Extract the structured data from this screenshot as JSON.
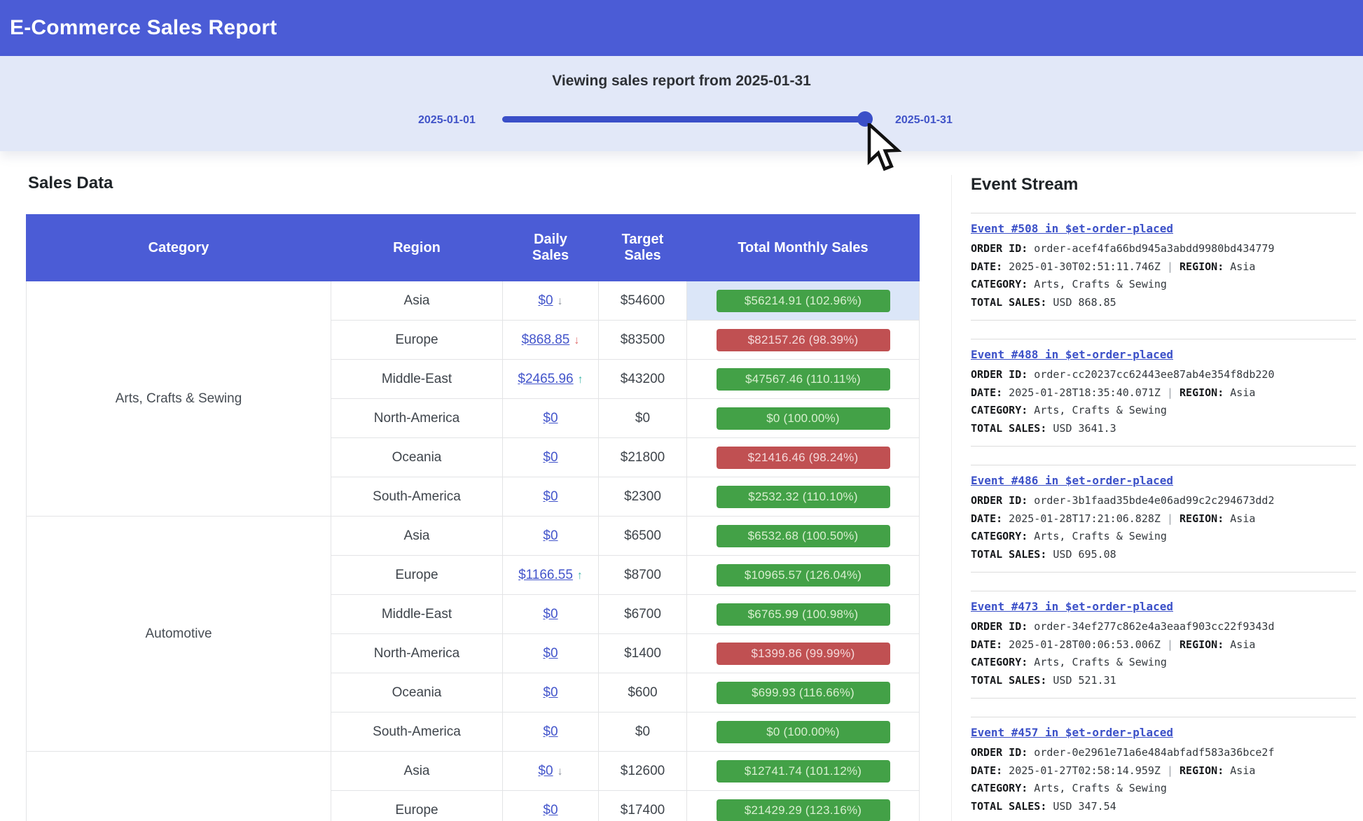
{
  "header": {
    "title": "E-Commerce Sales Report"
  },
  "slider": {
    "title": "Viewing sales report from 2025-01-31",
    "start_label": "2025-01-01",
    "end_label": "2025-01-31",
    "value_percent": 97
  },
  "sales": {
    "heading": "Sales Data",
    "columns": [
      "Category",
      "Region",
      "Daily Sales",
      "Target Sales",
      "Total Monthly Sales"
    ],
    "groups": [
      {
        "category": "Arts, Crafts & Sewing",
        "rows": [
          {
            "region": "Asia",
            "daily": "$0",
            "trend": "down-gray",
            "target": "$54600",
            "total": "$56214.91 (102.96%)",
            "status": "green",
            "highlight": true
          },
          {
            "region": "Europe",
            "daily": "$868.85",
            "trend": "down-red",
            "target": "$83500",
            "total": "$82157.26 (98.39%)",
            "status": "red",
            "highlight": false
          },
          {
            "region": "Middle-East",
            "daily": "$2465.96",
            "trend": "up-teal",
            "target": "$43200",
            "total": "$47567.46 (110.11%)",
            "status": "green",
            "highlight": false
          },
          {
            "region": "North-America",
            "daily": "$0",
            "trend": null,
            "target": "$0",
            "total": "$0 (100.00%)",
            "status": "green",
            "highlight": false
          },
          {
            "region": "Oceania",
            "daily": "$0",
            "trend": null,
            "target": "$21800",
            "total": "$21416.46 (98.24%)",
            "status": "red",
            "highlight": false
          },
          {
            "region": "South-America",
            "daily": "$0",
            "trend": null,
            "target": "$2300",
            "total": "$2532.32 (110.10%)",
            "status": "green",
            "highlight": false
          }
        ]
      },
      {
        "category": "Automotive",
        "rows": [
          {
            "region": "Asia",
            "daily": "$0",
            "trend": null,
            "target": "$6500",
            "total": "$6532.68 (100.50%)",
            "status": "green",
            "highlight": false
          },
          {
            "region": "Europe",
            "daily": "$1166.55",
            "trend": "up-teal",
            "target": "$8700",
            "total": "$10965.57 (126.04%)",
            "status": "green",
            "highlight": false
          },
          {
            "region": "Middle-East",
            "daily": "$0",
            "trend": null,
            "target": "$6700",
            "total": "$6765.99 (100.98%)",
            "status": "green",
            "highlight": false
          },
          {
            "region": "North-America",
            "daily": "$0",
            "trend": null,
            "target": "$1400",
            "total": "$1399.86 (99.99%)",
            "status": "red",
            "highlight": false
          },
          {
            "region": "Oceania",
            "daily": "$0",
            "trend": null,
            "target": "$600",
            "total": "$699.93 (116.66%)",
            "status": "green",
            "highlight": false
          },
          {
            "region": "South-America",
            "daily": "$0",
            "trend": null,
            "target": "$0",
            "total": "$0 (100.00%)",
            "status": "green",
            "highlight": false
          }
        ]
      },
      {
        "category": "",
        "rows": [
          {
            "region": "Asia",
            "daily": "$0",
            "trend": "down-gray",
            "target": "$12600",
            "total": "$12741.74 (101.12%)",
            "status": "green",
            "highlight": false
          },
          {
            "region": "Europe",
            "daily": "$0",
            "trend": null,
            "target": "$17400",
            "total": "$21429.29 (123.16%)",
            "status": "green",
            "highlight": false
          }
        ]
      }
    ],
    "trend_glyphs": {
      "down-gray": "↓",
      "down-red": "↓",
      "up-teal": "↑"
    }
  },
  "events": {
    "heading": "Event Stream",
    "labels": {
      "order_id": "ORDER ID:",
      "date": "DATE:",
      "region": "REGION:",
      "category": "CATEGORY:",
      "total": "TOTAL SALES:",
      "pipe": "|"
    },
    "items": [
      {
        "title": "Event #508 in $et-order-placed",
        "order_id": "order-acef4fa66bd945a3abdd9980bd434779",
        "date": "2025-01-30T02:51:11.746Z",
        "region": "Asia",
        "category": "Arts, Crafts & Sewing",
        "total": "USD 868.85"
      },
      {
        "title": "Event #488 in $et-order-placed",
        "order_id": "order-cc20237cc62443ee87ab4e354f8db220",
        "date": "2025-01-28T18:35:40.071Z",
        "region": "Asia",
        "category": "Arts, Crafts & Sewing",
        "total": "USD 3641.3"
      },
      {
        "title": "Event #486 in $et-order-placed",
        "order_id": "order-3b1faad35bde4e06ad99c2c294673dd2",
        "date": "2025-01-28T17:21:06.828Z",
        "region": "Asia",
        "category": "Arts, Crafts & Sewing",
        "total": "USD 695.08"
      },
      {
        "title": "Event #473 in $et-order-placed",
        "order_id": "order-34ef277c862e4a3eaaf903cc22f9343d",
        "date": "2025-01-28T00:06:53.006Z",
        "region": "Asia",
        "category": "Arts, Crafts & Sewing",
        "total": "USD 521.31"
      },
      {
        "title": "Event #457 in $et-order-placed",
        "order_id": "order-0e2961e71a6e484abfadf583a36bce2f",
        "date": "2025-01-27T02:58:14.959Z",
        "region": "Asia",
        "category": "Arts, Crafts & Sewing",
        "total": "USD 347.54"
      }
    ]
  },
  "colors": {
    "primary_blue": "#4b5cd6",
    "slider_bg": "#e2e8f8",
    "track_blue": "#3a4fc8",
    "date_label_blue": "#4053c8",
    "link_blue": "#4355cb",
    "badge_green": "#43a147",
    "badge_red": "#c05052",
    "badge_green_text": "#d8efcf",
    "badge_red_text": "#f4d9da",
    "highlight_cell": "#dbe6f8",
    "event_link_blue": "#3b50c8"
  }
}
